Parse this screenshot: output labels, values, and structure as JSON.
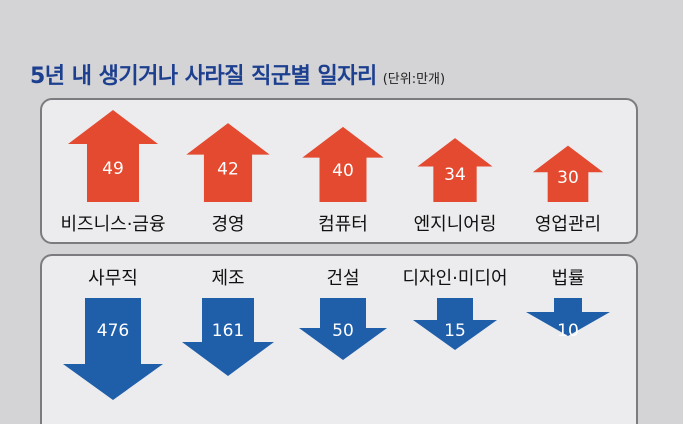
{
  "header": {
    "title": "5년 내 생기거나 사라질 직군별 일자리",
    "unit": "(단위:만개)"
  },
  "colors": {
    "up": "#e34a2f",
    "down": "#1f5ea9",
    "title": "#1d3f8f"
  },
  "chart_data": [
    {
      "type": "bar",
      "direction": "increase",
      "categories": [
        "비즈니스·금융",
        "경영",
        "컴퓨터",
        "엔지니어링",
        "영업관리"
      ],
      "values": [
        49,
        42,
        40,
        34,
        30
      ]
    },
    {
      "type": "bar",
      "direction": "decrease",
      "categories": [
        "사무직",
        "제조",
        "건설",
        "디자인·미디어",
        "법률"
      ],
      "values": [
        476,
        161,
        50,
        15,
        10
      ]
    }
  ]
}
